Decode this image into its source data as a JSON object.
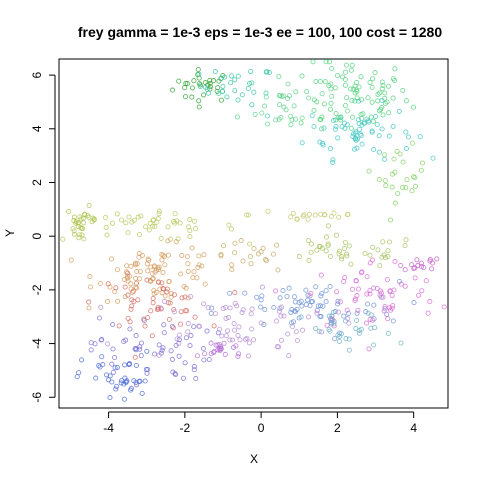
{
  "chart_data": {
    "type": "scatter",
    "title": "frey gamma = 1e-3 eps = 1e-3 ee = 100, 100 cost = 1280",
    "xlabel": "X",
    "ylabel": "Y",
    "xlim": [
      -5.3,
      4.9
    ],
    "ylim": [
      -6.4,
      6.6
    ],
    "xticks": [
      "-4",
      "-2",
      "0",
      "2",
      "4"
    ],
    "yticks": [
      "-6",
      "-4",
      "-2",
      "0",
      "2",
      "4",
      "6"
    ],
    "grid": false,
    "legend": "none",
    "marker": "open circle",
    "color_note": "points colored by hue (rainbow)",
    "clusters": [
      {
        "color": "#2ca02c",
        "center": [
          -1.5,
          5.6
        ],
        "spread": [
          0.4,
          0.3
        ],
        "n": 30
      },
      {
        "color": "#33c3a0",
        "center": [
          -0.6,
          5.6
        ],
        "spread": [
          0.5,
          0.35
        ],
        "n": 30
      },
      {
        "color": "#4fd07a",
        "center": [
          2.3,
          5.2
        ],
        "spread": [
          0.8,
          0.7
        ],
        "n": 90
      },
      {
        "color": "#3fc4c4",
        "center": [
          2.6,
          3.9
        ],
        "spread": [
          0.7,
          0.5
        ],
        "n": 60
      },
      {
        "color": "#5fd08a",
        "center": [
          0.6,
          4.8
        ],
        "spread": [
          0.6,
          0.5
        ],
        "n": 30
      },
      {
        "color": "#7fcf5f",
        "center": [
          3.7,
          2.3
        ],
        "spread": [
          0.3,
          0.5
        ],
        "n": 25
      },
      {
        "color": "#a8c34a",
        "center": [
          -4.7,
          0.6
        ],
        "spread": [
          0.2,
          0.25
        ],
        "n": 25
      },
      {
        "color": "#b4c75a",
        "center": [
          -3.0,
          0.35
        ],
        "spread": [
          1.2,
          0.25
        ],
        "n": 50
      },
      {
        "color": "#c2c86a",
        "center": [
          1.3,
          0.8
        ],
        "spread": [
          0.8,
          0.15
        ],
        "n": 20
      },
      {
        "color": "#a6c25b",
        "center": [
          2.2,
          -0.6
        ],
        "spread": [
          1.0,
          0.3
        ],
        "n": 40
      },
      {
        "color": "#c5a560",
        "center": [
          -0.3,
          -0.8
        ],
        "spread": [
          0.5,
          0.3
        ],
        "n": 20
      },
      {
        "color": "#d49a5c",
        "center": [
          -2.7,
          -1.4
        ],
        "spread": [
          0.8,
          0.5
        ],
        "n": 90
      },
      {
        "color": "#d46a5c",
        "center": [
          -2.9,
          -2.5
        ],
        "spread": [
          0.7,
          0.5
        ],
        "n": 50
      },
      {
        "color": "#6a8fd4",
        "center": [
          1.2,
          -2.7
        ],
        "spread": [
          1.2,
          0.5
        ],
        "n": 70
      },
      {
        "color": "#d66ad4",
        "center": [
          3.0,
          -2.2
        ],
        "spread": [
          0.9,
          0.7
        ],
        "n": 60
      },
      {
        "color": "#c35ac9",
        "center": [
          4.2,
          -1.0
        ],
        "spread": [
          0.25,
          0.15
        ],
        "n": 15
      },
      {
        "color": "#b48ad4",
        "center": [
          -0.8,
          -3.3
        ],
        "spread": [
          1.3,
          0.6
        ],
        "n": 70
      },
      {
        "color": "#7a6ad4",
        "center": [
          -2.9,
          -4.2
        ],
        "spread": [
          0.8,
          0.6
        ],
        "n": 55
      },
      {
        "color": "#4a6ad4",
        "center": [
          -3.7,
          -5.3
        ],
        "spread": [
          0.5,
          0.5
        ],
        "n": 40
      },
      {
        "color": "#6ab0c4",
        "center": [
          2.3,
          -3.6
        ],
        "spread": [
          0.6,
          0.4
        ],
        "n": 30
      },
      {
        "color": "#b46ad4",
        "center": [
          -1.0,
          -4.2
        ],
        "spread": [
          0.3,
          0.2
        ],
        "n": 20
      }
    ]
  }
}
